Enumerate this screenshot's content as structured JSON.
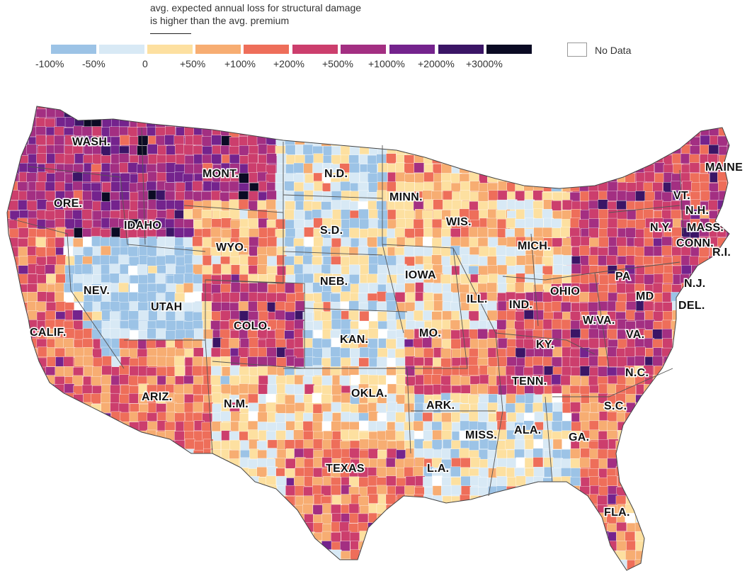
{
  "caption": {
    "line1": "avg. expected annual loss for structural damage",
    "line2": "is higher than the avg. premium"
  },
  "legend": {
    "bins": [
      {
        "label": "-100%",
        "color": "#9cc3e6"
      },
      {
        "label": "-50%",
        "color": "#d8e9f5"
      },
      {
        "label": "0",
        "color": "#fde0a0"
      },
      {
        "label": "+50%",
        "color": "#f7ad72"
      },
      {
        "label": "+100%",
        "color": "#ee6e5a"
      },
      {
        "label": "+200%",
        "color": "#cc3e6d"
      },
      {
        "label": "+500%",
        "color": "#a32f82"
      },
      {
        "label": "+1000%",
        "color": "#74238d"
      },
      {
        "label": "+2000%",
        "color": "#3b1566"
      },
      {
        "label": "+3000%",
        "color": "#0b0b24"
      }
    ],
    "no_data_label": "No Data"
  },
  "state_labels": [
    {
      "id": "wash",
      "text": "WASH."
    },
    {
      "id": "ore",
      "text": "ORE."
    },
    {
      "id": "calif",
      "text": "CALIF."
    },
    {
      "id": "nev",
      "text": "NEV."
    },
    {
      "id": "idaho",
      "text": "IDAHO"
    },
    {
      "id": "mont",
      "text": "MONT."
    },
    {
      "id": "wyo",
      "text": "WYO."
    },
    {
      "id": "utah",
      "text": "UTAH"
    },
    {
      "id": "ariz",
      "text": "ARIZ."
    },
    {
      "id": "colo",
      "text": "COLO."
    },
    {
      "id": "nm",
      "text": "N.M."
    },
    {
      "id": "nd",
      "text": "N.D."
    },
    {
      "id": "sd",
      "text": "S.D."
    },
    {
      "id": "neb",
      "text": "NEB."
    },
    {
      "id": "kan",
      "text": "KAN."
    },
    {
      "id": "okla",
      "text": "OKLA."
    },
    {
      "id": "texas",
      "text": "TEXAS"
    },
    {
      "id": "minn",
      "text": "MINN."
    },
    {
      "id": "iowa",
      "text": "IOWA"
    },
    {
      "id": "mo",
      "text": "MO."
    },
    {
      "id": "ark",
      "text": "ARK."
    },
    {
      "id": "la",
      "text": "L.A."
    },
    {
      "id": "wis",
      "text": "WIS."
    },
    {
      "id": "ill",
      "text": "ILL."
    },
    {
      "id": "miss",
      "text": "MISS."
    },
    {
      "id": "mich",
      "text": "MICH."
    },
    {
      "id": "ind",
      "text": "IND."
    },
    {
      "id": "ohio",
      "text": "OHIO"
    },
    {
      "id": "ky",
      "text": "KY."
    },
    {
      "id": "tenn",
      "text": "TENN."
    },
    {
      "id": "ala",
      "text": "ALA."
    },
    {
      "id": "ga",
      "text": "GA."
    },
    {
      "id": "fla",
      "text": "FLA."
    },
    {
      "id": "sc",
      "text": "S.C."
    },
    {
      "id": "nc",
      "text": "N.C."
    },
    {
      "id": "va",
      "text": "VA."
    },
    {
      "id": "wva",
      "text": "W.VA."
    },
    {
      "id": "pa",
      "text": "PA"
    },
    {
      "id": "md",
      "text": "MD"
    },
    {
      "id": "del",
      "text": "DEL."
    },
    {
      "id": "nj",
      "text": "N.J."
    },
    {
      "id": "ny",
      "text": "N.Y."
    },
    {
      "id": "conn",
      "text": "CONN."
    },
    {
      "id": "ri",
      "text": "R.I."
    },
    {
      "id": "mass",
      "text": "MASS."
    },
    {
      "id": "vt",
      "text": "VT."
    },
    {
      "id": "nh",
      "text": "N.H."
    },
    {
      "id": "maine",
      "text": "MAINE"
    }
  ],
  "regions": [
    {
      "id": "pacific-nw",
      "level": 6
    },
    {
      "id": "california",
      "level": 4
    },
    {
      "id": "great-basin",
      "level": 0
    },
    {
      "id": "southwest",
      "level": 4
    },
    {
      "id": "northern-rockies",
      "level": 6
    },
    {
      "id": "wyoming-plains",
      "level": 3
    },
    {
      "id": "colorado",
      "level": 5
    },
    {
      "id": "northern-plains",
      "level": 1
    },
    {
      "id": "central-plains",
      "level": 1
    },
    {
      "id": "southern-plains",
      "level": 2
    },
    {
      "id": "texas-gulf",
      "level": 4
    },
    {
      "id": "upper-midwest",
      "level": 3
    },
    {
      "id": "midwest",
      "level": 2
    },
    {
      "id": "ozarks",
      "level": 4
    },
    {
      "id": "deep-south",
      "level": 1
    },
    {
      "id": "appalachia",
      "level": 5
    },
    {
      "id": "southeast-coast",
      "level": 4
    },
    {
      "id": "northeast",
      "level": 5
    }
  ]
}
